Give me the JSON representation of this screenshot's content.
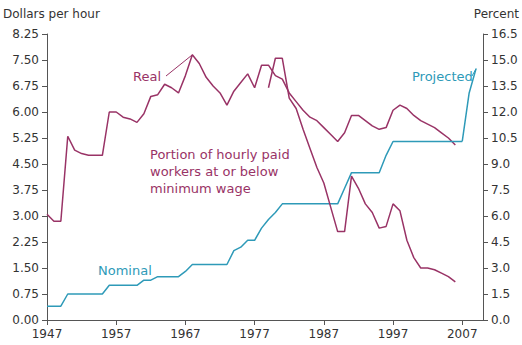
{
  "chart_data": {
    "type": "line",
    "ylabel": "Dollars per hour",
    "y2label": "Percent",
    "xlim": [
      1947,
      2010
    ],
    "xticks": [
      1947,
      1957,
      1967,
      1977,
      1987,
      1997,
      2007
    ],
    "ylim": [
      0,
      8.25
    ],
    "yticks": [
      {
        "value": 0,
        "label": "0.00"
      },
      0.75,
      {
        "value": 1.5,
        "label": "1.50"
      },
      2.25,
      {
        "value": 3,
        "label": "3.00"
      },
      3.75,
      {
        "value": 4.5,
        "label": "4.50"
      },
      5.25,
      {
        "value": 6,
        "label": "6.00"
      },
      6.75,
      {
        "value": 7.5,
        "label": "7.50"
      },
      8.25
    ],
    "y2lim": [
      0,
      16.5
    ],
    "y2ticks": [
      {
        "value": 0,
        "label": "0.0"
      },
      1.5,
      {
        "value": 3,
        "label": "3.0"
      },
      4.5,
      {
        "value": 6,
        "label": "6.0"
      },
      7.5,
      {
        "value": 9,
        "label": "9.0"
      },
      10.5,
      {
        "value": 12,
        "label": "12.0"
      },
      13.5,
      {
        "value": 15,
        "label": "15.0"
      },
      16.5
    ],
    "grid": false,
    "series": [
      {
        "name": "Real",
        "color": "#993366",
        "axis": "y",
        "x": [
          1947,
          1948,
          1949,
          1950,
          1951,
          1952,
          1953,
          1954,
          1955,
          1956,
          1957,
          1958,
          1959,
          1960,
          1961,
          1962,
          1963,
          1964,
          1965,
          1966,
          1967,
          1968,
          1969,
          1970,
          1971,
          1972,
          1973,
          1974,
          1975,
          1976,
          1977,
          1978,
          1979,
          1980,
          1981,
          1982,
          1983,
          1984,
          1985,
          1986,
          1987,
          1988,
          1989,
          1990,
          1991,
          1992,
          1993,
          1994,
          1995,
          1996,
          1997,
          1998,
          1999,
          2000,
          2001,
          2002,
          2003,
          2004,
          2005,
          2006
        ],
        "values": [
          3.05,
          2.85,
          2.85,
          5.3,
          4.9,
          4.8,
          4.75,
          4.75,
          4.75,
          6.0,
          6.0,
          5.85,
          5.8,
          5.7,
          5.95,
          6.45,
          6.5,
          6.8,
          6.7,
          6.55,
          7.05,
          7.65,
          7.4,
          7.0,
          6.75,
          6.55,
          6.2,
          6.6,
          6.85,
          7.1,
          6.7,
          7.35,
          7.35,
          7.05,
          6.95,
          6.55,
          6.3,
          6.05,
          5.85,
          5.75,
          5.55,
          5.35,
          5.15,
          5.4,
          5.9,
          5.9,
          5.75,
          5.6,
          5.5,
          5.55,
          6.05,
          6.2,
          6.1,
          5.9,
          5.75,
          5.65,
          5.55,
          5.4,
          5.25,
          5.05
        ]
      },
      {
        "name": "Nominal",
        "color": "#2e9ab8",
        "axis": "y",
        "x": [
          1947,
          1948,
          1949,
          1950,
          1951,
          1952,
          1953,
          1954,
          1955,
          1956,
          1957,
          1958,
          1959,
          1960,
          1961,
          1962,
          1963,
          1964,
          1965,
          1966,
          1967,
          1968,
          1969,
          1970,
          1971,
          1972,
          1973,
          1974,
          1975,
          1976,
          1977,
          1978,
          1979,
          1980,
          1981,
          1982,
          1983,
          1984,
          1985,
          1986,
          1987,
          1988,
          1989,
          1990,
          1991,
          1992,
          1993,
          1994,
          1995,
          1996,
          1997,
          1998,
          1999,
          2000,
          2001,
          2002,
          2003,
          2004,
          2005,
          2006,
          2007
        ],
        "values": [
          0.4,
          0.4,
          0.4,
          0.75,
          0.75,
          0.75,
          0.75,
          0.75,
          0.75,
          1.0,
          1.0,
          1.0,
          1.0,
          1.0,
          1.15,
          1.15,
          1.25,
          1.25,
          1.25,
          1.25,
          1.4,
          1.6,
          1.6,
          1.6,
          1.6,
          1.6,
          1.6,
          2.0,
          2.1,
          2.3,
          2.3,
          2.65,
          2.9,
          3.1,
          3.35,
          3.35,
          3.35,
          3.35,
          3.35,
          3.35,
          3.35,
          3.35,
          3.35,
          3.8,
          4.25,
          4.25,
          4.25,
          4.25,
          4.25,
          4.75,
          5.15,
          5.15,
          5.15,
          5.15,
          5.15,
          5.15,
          5.15,
          5.15,
          5.15,
          5.15,
          5.15
        ]
      },
      {
        "name": "Projected",
        "color": "#2e9ab8",
        "axis": "y",
        "x": [
          2007,
          2008,
          2009
        ],
        "values": [
          5.15,
          6.55,
          7.25
        ]
      },
      {
        "name": "Portion of hourly paid workers at or below minimum wage",
        "color": "#993366",
        "axis": "y2",
        "x": [
          1979,
          1980,
          1981,
          1982,
          1983,
          1984,
          1985,
          1986,
          1987,
          1988,
          1989,
          1990,
          1991,
          1992,
          1993,
          1994,
          1995,
          1996,
          1997,
          1998,
          1999,
          2000,
          2001,
          2002,
          2003,
          2004,
          2005,
          2006
        ],
        "values": [
          13.4,
          15.1,
          15.1,
          12.8,
          12.2,
          11.0,
          9.9,
          8.8,
          7.9,
          6.5,
          5.1,
          5.1,
          8.3,
          7.6,
          6.7,
          6.2,
          5.3,
          5.4,
          6.7,
          6.3,
          4.6,
          3.6,
          3.0,
          3.0,
          2.9,
          2.7,
          2.5,
          2.2
        ]
      }
    ]
  }
}
